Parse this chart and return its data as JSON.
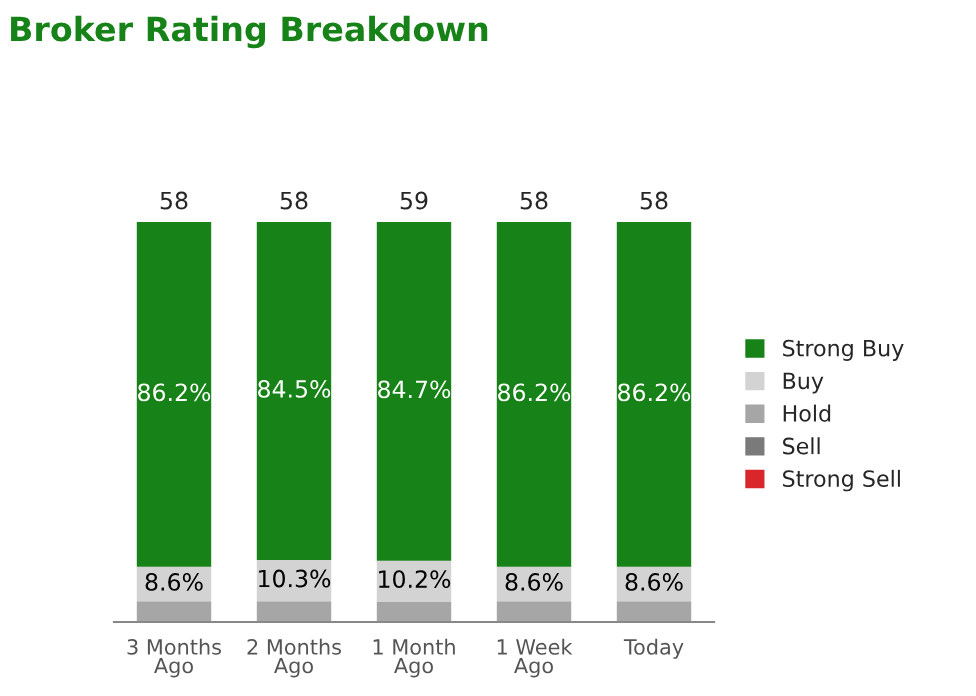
{
  "chart_data": {
    "type": "bar",
    "title": "Broker Rating Breakdown",
    "categories": [
      "3 Months\nAgo",
      "2 Months\nAgo",
      "1 Month\nAgo",
      "1 Week\nAgo",
      "Today"
    ],
    "stacked": true,
    "grid": false,
    "legend": "right",
    "series": [
      {
        "name": "Strong Sell",
        "color": "#d9262b",
        "values": [
          0,
          0,
          0,
          0,
          0
        ]
      },
      {
        "name": "Sell",
        "color": "#7a7a7a",
        "values": [
          0,
          0,
          0,
          0,
          0
        ]
      },
      {
        "name": "Hold",
        "color": "#a6a6a6",
        "values": [
          5.2,
          5.2,
          5.1,
          5.2,
          5.2
        ]
      },
      {
        "name": "Buy",
        "color": "#d3d3d3",
        "values": [
          8.6,
          10.3,
          10.2,
          8.6,
          8.6
        ],
        "value_labels": [
          "8.6%",
          "10.3%",
          "10.2%",
          "8.6%",
          "8.6%"
        ]
      },
      {
        "name": "Strong Buy",
        "color": "#178217",
        "values": [
          86.2,
          84.5,
          84.7,
          86.2,
          86.2
        ],
        "value_labels": [
          "86.2%",
          "84.5%",
          "84.7%",
          "86.2%",
          "86.2%"
        ]
      }
    ],
    "annotations": [
      {
        "text": "58",
        "x": "3 Months\nAgo",
        "y": 100
      },
      {
        "text": "58",
        "x": "2 Months\nAgo",
        "y": 100
      },
      {
        "text": "59",
        "x": "1 Month\nAgo",
        "y": 100
      },
      {
        "text": "58",
        "x": "1 Week\nAgo",
        "y": 100
      },
      {
        "text": "58",
        "x": "Today",
        "y": 100
      }
    ]
  }
}
